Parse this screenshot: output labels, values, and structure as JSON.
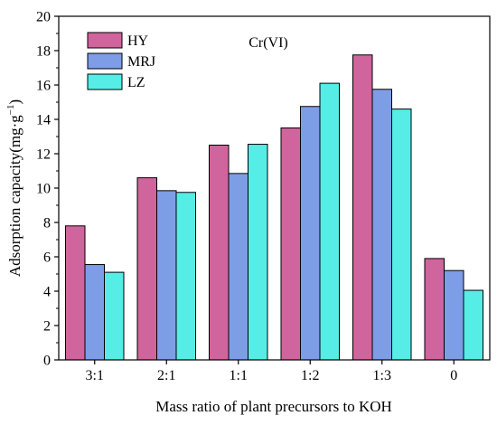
{
  "chart_data": {
    "type": "bar",
    "annotation": "Cr(VI)",
    "xlabel": "Mass ratio of plant precursors to KOH",
    "ylabel_main": "Adsorption capacity(mg·g",
    "ylabel_sup": "−1",
    "ylabel_close": ")",
    "ylim": [
      0,
      20
    ],
    "yticks": [
      "0",
      "2",
      "4",
      "6",
      "8",
      "10",
      "12",
      "14",
      "16",
      "18",
      "20"
    ],
    "categories": [
      "3:1",
      "2:1",
      "1:1",
      "1:2",
      "1:3",
      "0"
    ],
    "series": [
      {
        "name": "HY",
        "color": "#d0649c",
        "values": [
          7.8,
          10.6,
          12.5,
          13.5,
          17.75,
          5.9
        ]
      },
      {
        "name": "MRJ",
        "color": "#7d9de6",
        "values": [
          5.55,
          9.85,
          10.85,
          14.75,
          15.75,
          5.2
        ]
      },
      {
        "name": "LZ",
        "color": "#55ede6",
        "values": [
          5.1,
          9.75,
          12.55,
          16.1,
          14.6,
          4.05
        ]
      }
    ],
    "legend_position": "top-left",
    "grid": false
  }
}
